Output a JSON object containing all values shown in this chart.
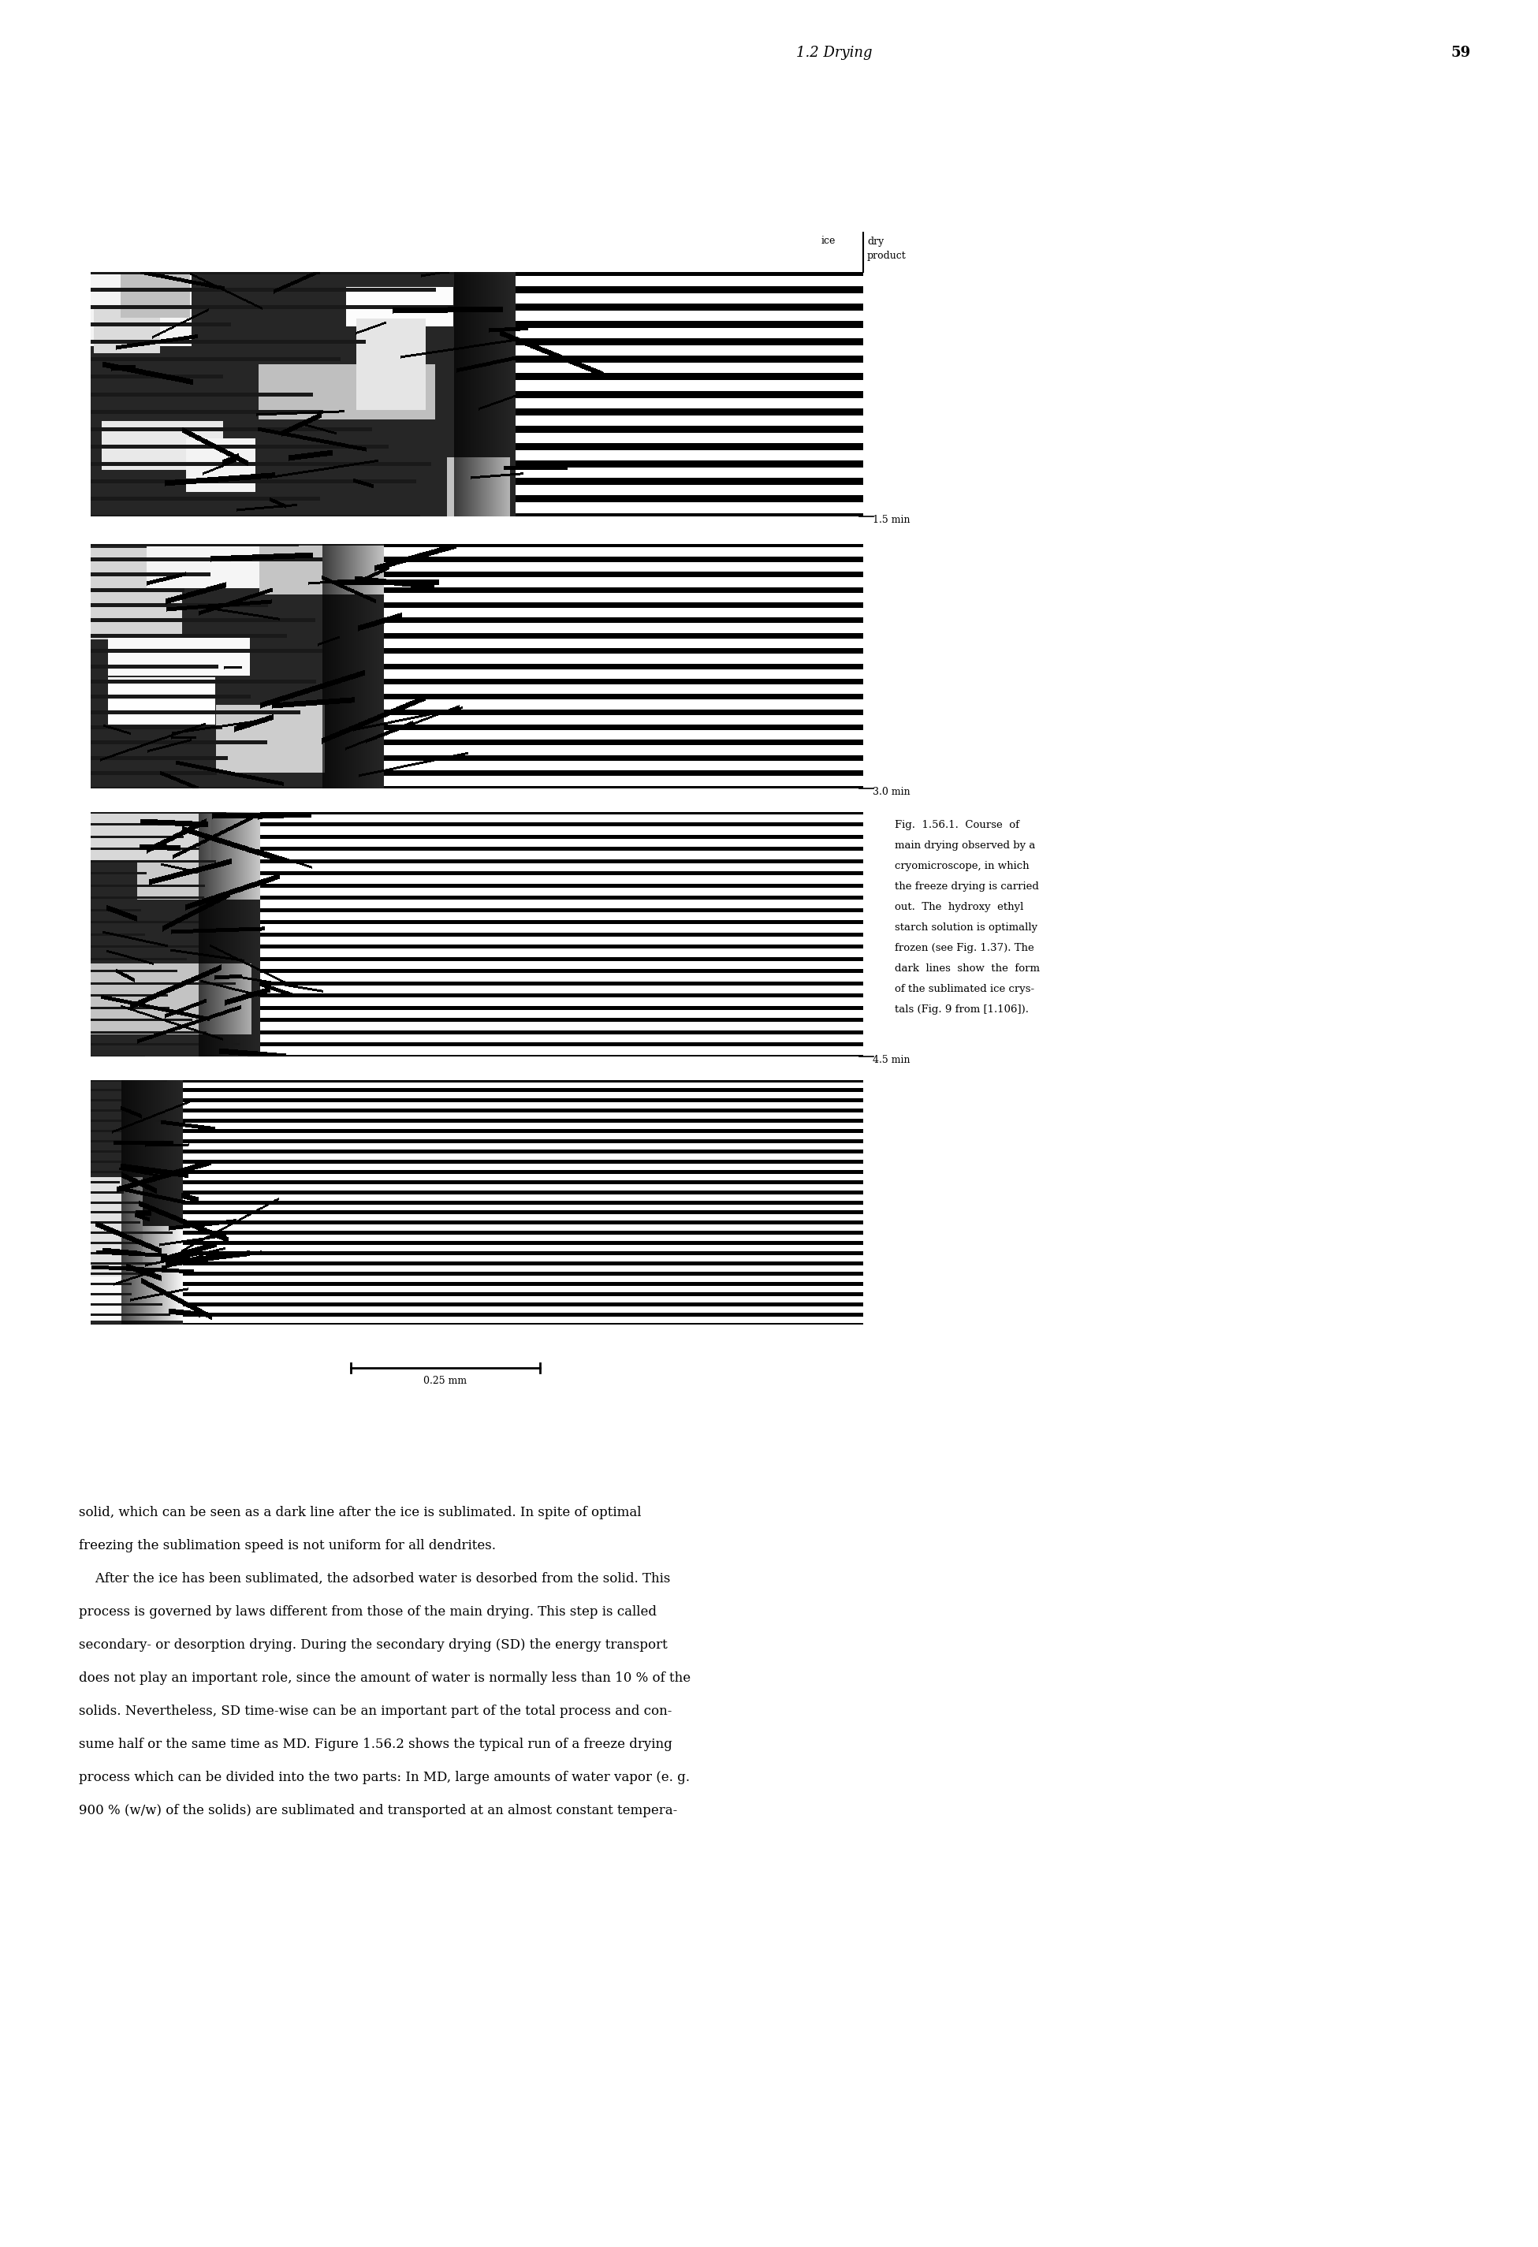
{
  "page_header": "1.2 Drying",
  "page_number": "59",
  "time_labels": [
    "1.5 min",
    "3.0 min",
    "4.5 min"
  ],
  "ice_label": "ice",
  "dry_label": "dry",
  "product_label": "product",
  "scale_bar_label": "0.25 mm",
  "fig_caption_lines": [
    "Fig.  1.56.1.  Course  of",
    "main drying observed by a",
    "cryomicroscope, in which",
    "the freeze drying is carried",
    "out.  The  hydroxy  ethyl",
    "starch solution is optimally",
    "frozen (see Fig. 1.37). The",
    "dark  lines  show  the  form",
    "of the sublimated ice crys-",
    "tals (Fig. 9 from [1.106])."
  ],
  "body_text_lines": [
    "solid, which can be seen as a dark line after the ice is sublimated. In spite of optimal",
    "freezing the sublimation speed is not uniform for all dendrites.",
    "    After the ice has been sublimated, the adsorbed water is desorbed from the solid. This",
    "process is governed by laws different from those of the main drying. This step is called",
    "secondary- or desorption drying. During the secondary drying (SD) the energy transport",
    "does not play an important role, since the amount of water is normally less than 10 % of the",
    "solids. Nevertheless, SD time-wise can be an important part of the total process and con-",
    "sume half or the same time as MD. Figure 1.56.2 shows the typical run of a freeze drying",
    "process which can be divided into the two parts: In MD, large amounts of water vapor (e. g.",
    "900 % (w/w) of the solids) are sublimated and transported at an almost constant tempera-"
  ],
  "background_color": "#ffffff"
}
